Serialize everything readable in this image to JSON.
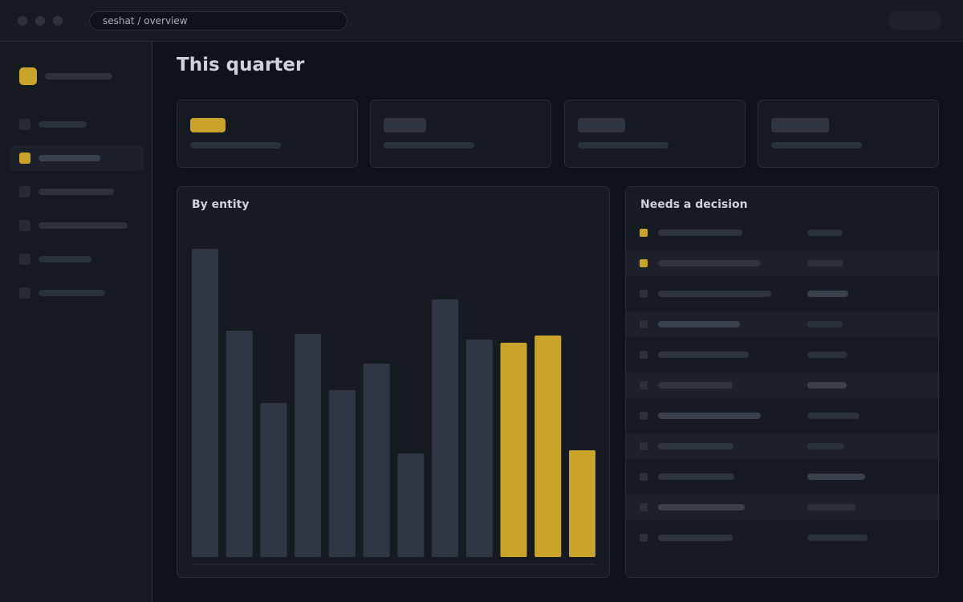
{
  "window": {
    "address": "seshat / overview"
  },
  "colors": {
    "accent": "#c9a32a",
    "bar_default": "#303744",
    "panel_bg": "#161a21",
    "page_bg": "#0f1218"
  },
  "sidebar": {
    "logo_icon": "app-logo",
    "active_index": 1,
    "item_count": 6
  },
  "main": {
    "title": "This quarter"
  },
  "chart_panel": {
    "title": "By entity"
  },
  "chart_data": {
    "type": "bar",
    "title": "By entity",
    "values": [
      384,
      282,
      192,
      278,
      208,
      241,
      129,
      321,
      271,
      267,
      276,
      133
    ],
    "highlighted": [
      false,
      false,
      false,
      false,
      false,
      false,
      false,
      false,
      false,
      true,
      true,
      true
    ],
    "ylim": [
      0,
      400
    ],
    "grid": false,
    "legend": "none"
  },
  "decision_panel": {
    "title": "Needs a decision",
    "flagged_rows": [
      0,
      1
    ],
    "row_count": 11
  }
}
